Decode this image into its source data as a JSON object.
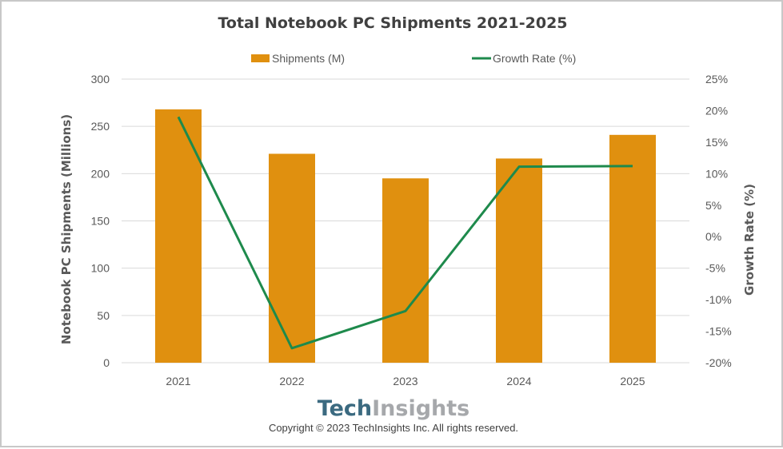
{
  "chart_data": {
    "type": "bar",
    "title": "Total Notebook PC Shipments 2021-2025",
    "categories": [
      "2021",
      "2022",
      "2023",
      "2024",
      "2025"
    ],
    "series": [
      {
        "name": "Shipments (M)",
        "type": "bar",
        "axis": "left",
        "color": "#e0900f",
        "values": [
          268,
          221,
          195,
          216,
          241
        ]
      },
      {
        "name": "Growth Rate (%)",
        "type": "line",
        "axis": "right",
        "color": "#1e8a4c",
        "values": [
          19.0,
          -17.7,
          -11.8,
          11.1,
          11.2
        ]
      }
    ],
    "xlabel": "",
    "ylabel": "Notebook PC Shipments (Millions)",
    "y2label": "Growth Rate (%)",
    "ylim": [
      0,
      300
    ],
    "y2lim": [
      -20,
      25
    ],
    "yticks": [
      "0",
      "50",
      "100",
      "150",
      "200",
      "250",
      "300"
    ],
    "y2ticks": [
      "-20%",
      "-15%",
      "-10%",
      "-5%",
      "0%",
      "5%",
      "10%",
      "15%",
      "20%",
      "25%"
    ],
    "grid": true,
    "legend": "top-center"
  },
  "branding": {
    "logo_part1": "Tech",
    "logo_part2": "Insights",
    "copyright": "Copyright © 2023 TechInsights Inc.  All rights reserved."
  }
}
